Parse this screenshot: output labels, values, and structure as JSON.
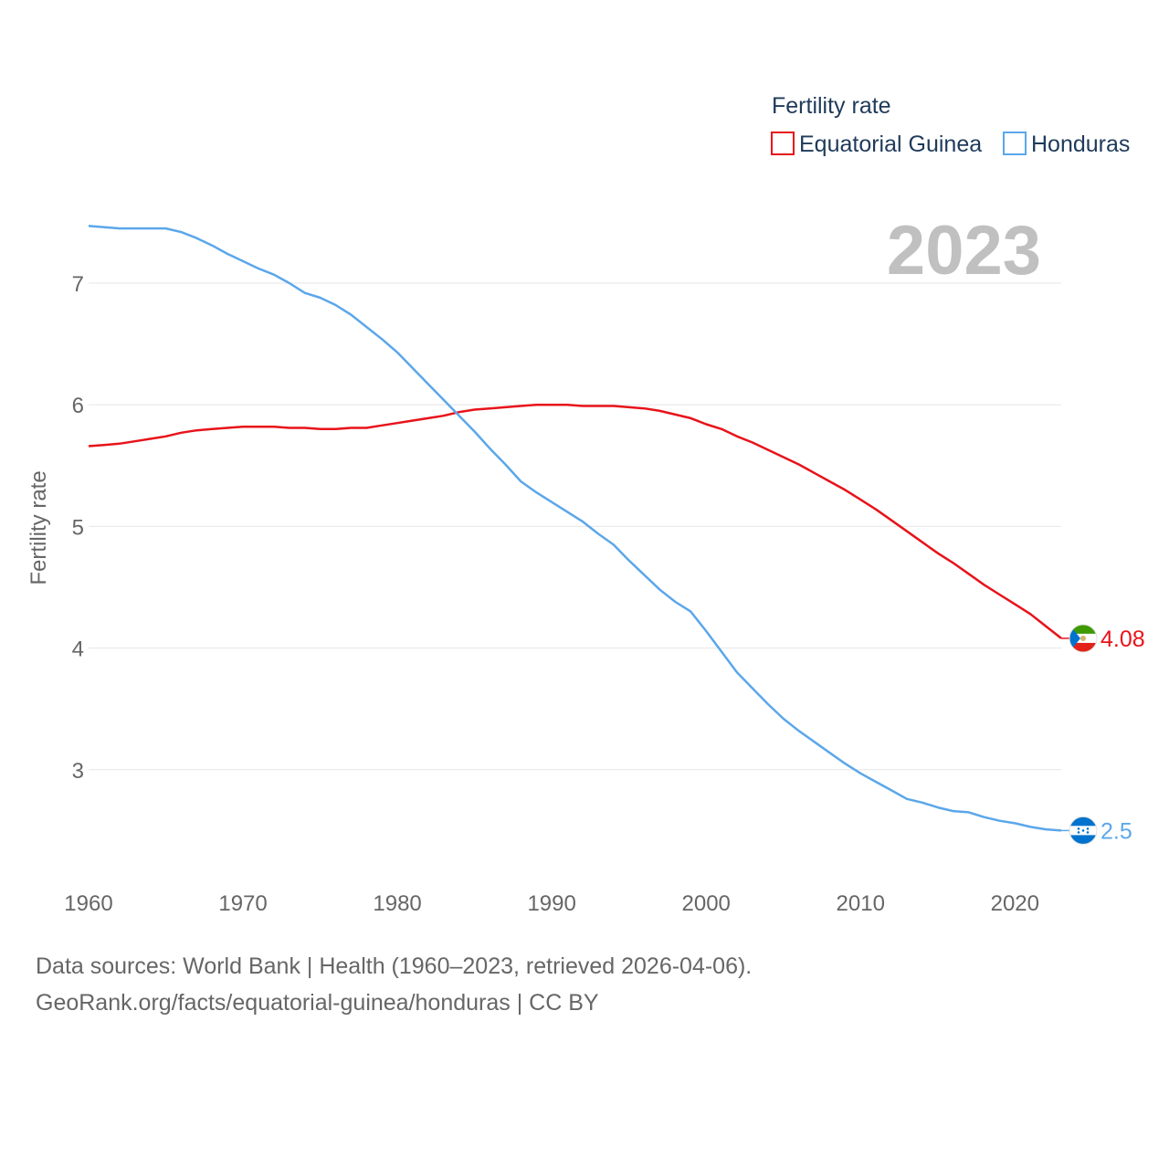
{
  "chart_data": {
    "type": "line",
    "legend_title": "Fertility rate",
    "ylabel": "Fertility rate",
    "current_year": "2023",
    "xlim": [
      1960,
      2023
    ],
    "ylim": [
      2.0,
      7.5
    ],
    "x_ticks": [
      1960,
      1970,
      1980,
      1990,
      2000,
      2010,
      2020
    ],
    "y_ticks": [
      3,
      4,
      5,
      6,
      7
    ],
    "x": [
      1960,
      1961,
      1962,
      1963,
      1964,
      1965,
      1966,
      1967,
      1968,
      1969,
      1970,
      1971,
      1972,
      1973,
      1974,
      1975,
      1976,
      1977,
      1978,
      1979,
      1980,
      1981,
      1982,
      1983,
      1984,
      1985,
      1986,
      1987,
      1988,
      1989,
      1990,
      1991,
      1992,
      1993,
      1994,
      1995,
      1996,
      1997,
      1998,
      1999,
      2000,
      2001,
      2002,
      2003,
      2004,
      2005,
      2006,
      2007,
      2008,
      2009,
      2010,
      2011,
      2012,
      2013,
      2014,
      2015,
      2016,
      2017,
      2018,
      2019,
      2020,
      2021,
      2022,
      2023
    ],
    "series": [
      {
        "name": "Equatorial Guinea",
        "color": "#e8131a",
        "end_label": "4.08",
        "flag": "equatorial-guinea-flag-icon",
        "values": [
          5.66,
          5.67,
          5.68,
          5.7,
          5.72,
          5.74,
          5.77,
          5.79,
          5.8,
          5.81,
          5.82,
          5.82,
          5.82,
          5.81,
          5.81,
          5.8,
          5.8,
          5.81,
          5.81,
          5.83,
          5.85,
          5.87,
          5.89,
          5.91,
          5.94,
          5.96,
          5.97,
          5.98,
          5.99,
          6.0,
          6.0,
          6.0,
          5.99,
          5.99,
          5.99,
          5.98,
          5.97,
          5.95,
          5.92,
          5.89,
          5.84,
          5.8,
          5.74,
          5.69,
          5.63,
          5.57,
          5.51,
          5.44,
          5.37,
          5.3,
          5.22,
          5.14,
          5.05,
          4.96,
          4.87,
          4.78,
          4.7,
          4.61,
          4.52,
          4.44,
          4.36,
          4.28,
          4.18,
          4.08
        ]
      },
      {
        "name": "Honduras",
        "color": "#5ba7ea",
        "end_label": "2.5",
        "flag": "honduras-flag-icon",
        "values": [
          7.47,
          7.46,
          7.45,
          7.45,
          7.45,
          7.45,
          7.42,
          7.37,
          7.31,
          7.24,
          7.18,
          7.12,
          7.07,
          7.0,
          6.92,
          6.88,
          6.82,
          6.74,
          6.64,
          6.54,
          6.43,
          6.3,
          6.17,
          6.04,
          5.91,
          5.78,
          5.64,
          5.51,
          5.37,
          5.28,
          5.2,
          5.12,
          5.04,
          4.94,
          4.85,
          4.72,
          4.6,
          4.48,
          4.38,
          4.3,
          4.14,
          3.97,
          3.8,
          3.67,
          3.54,
          3.42,
          3.32,
          3.23,
          3.14,
          3.05,
          2.97,
          2.9,
          2.83,
          2.76,
          2.73,
          2.69,
          2.66,
          2.65,
          2.61,
          2.58,
          2.56,
          2.53,
          2.51,
          2.5
        ]
      }
    ]
  },
  "footer": {
    "line1": "Data sources: World Bank | Health (1960–2023, retrieved 2026-04-06).",
    "line2": "GeoRank.org/facts/equatorial-guinea/honduras | CC BY"
  }
}
